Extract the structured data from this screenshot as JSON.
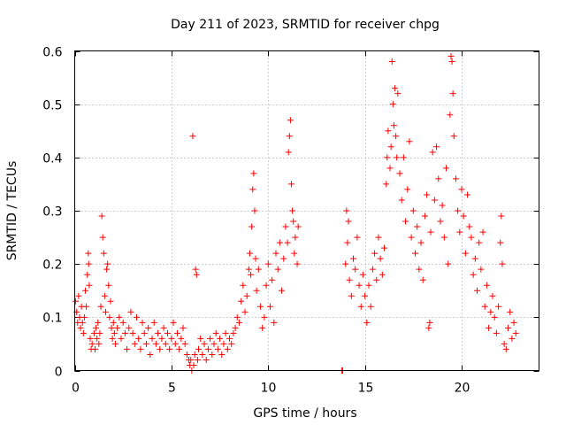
{
  "chart_data": {
    "type": "scatter",
    "title": "Day 211 of 2023, SRMTID for receiver chpg",
    "xlabel": "GPS time / hours",
    "ylabel": "SRMTID / TECUs",
    "xlim": [
      0,
      24
    ],
    "ylim": [
      0,
      0.6
    ],
    "xticks": [
      0,
      5,
      10,
      15,
      20
    ],
    "xtick_labels": [
      "0",
      "5",
      "10",
      "15",
      "20"
    ],
    "yticks": [
      0,
      0.1,
      0.2,
      0.3,
      0.4,
      0.5,
      0.6
    ],
    "ytick_labels": [
      "0",
      "0.1",
      "0.2",
      "0.3",
      "0.4",
      "0.5",
      "0.6"
    ],
    "grid": true,
    "marker": "plus",
    "color": "#ff0000",
    "series": [
      {
        "name": "SRMTID",
        "points": [
          [
            0.05,
            0.13
          ],
          [
            0.1,
            0.11
          ],
          [
            0.15,
            0.09
          ],
          [
            0.2,
            0.14
          ],
          [
            0.25,
            0.1
          ],
          [
            0.3,
            0.08
          ],
          [
            0.35,
            0.12
          ],
          [
            0.4,
            0.09
          ],
          [
            0.45,
            0.07
          ],
          [
            0.5,
            0.1
          ],
          [
            0.55,
            0.15
          ],
          [
            0.6,
            0.12
          ],
          [
            0.65,
            0.18
          ],
          [
            0.7,
            0.22
          ],
          [
            0.72,
            0.2
          ],
          [
            0.75,
            0.16
          ],
          [
            0.8,
            0.06
          ],
          [
            0.85,
            0.04
          ],
          [
            0.9,
            0.05
          ],
          [
            1.0,
            0.07
          ],
          [
            1.05,
            0.04
          ],
          [
            1.1,
            0.08
          ],
          [
            1.15,
            0.06
          ],
          [
            1.2,
            0.09
          ],
          [
            1.25,
            0.05
          ],
          [
            1.3,
            0.07
          ],
          [
            1.35,
            0.12
          ],
          [
            1.4,
            0.29
          ],
          [
            1.45,
            0.25
          ],
          [
            1.5,
            0.22
          ],
          [
            1.55,
            0.14
          ],
          [
            1.6,
            0.11
          ],
          [
            1.65,
            0.19
          ],
          [
            1.7,
            0.2
          ],
          [
            1.75,
            0.16
          ],
          [
            1.8,
            0.1
          ],
          [
            1.85,
            0.13
          ],
          [
            1.9,
            0.08
          ],
          [
            1.95,
            0.06
          ],
          [
            2.0,
            0.09
          ],
          [
            2.05,
            0.07
          ],
          [
            2.1,
            0.05
          ],
          [
            2.2,
            0.08
          ],
          [
            2.3,
            0.1
          ],
          [
            2.4,
            0.06
          ],
          [
            2.5,
            0.09
          ],
          [
            2.6,
            0.07
          ],
          [
            2.7,
            0.04
          ],
          [
            2.8,
            0.08
          ],
          [
            2.9,
            0.11
          ],
          [
            3.0,
            0.07
          ],
          [
            3.1,
            0.05
          ],
          [
            3.2,
            0.1
          ],
          [
            3.3,
            0.06
          ],
          [
            3.4,
            0.04
          ],
          [
            3.5,
            0.09
          ],
          [
            3.6,
            0.07
          ],
          [
            3.7,
            0.05
          ],
          [
            3.8,
            0.08
          ],
          [
            3.9,
            0.03
          ],
          [
            4.0,
            0.06
          ],
          [
            4.1,
            0.09
          ],
          [
            4.2,
            0.05
          ],
          [
            4.3,
            0.07
          ],
          [
            4.4,
            0.04
          ],
          [
            4.5,
            0.06
          ],
          [
            4.6,
            0.08
          ],
          [
            4.7,
            0.05
          ],
          [
            4.8,
            0.07
          ],
          [
            4.9,
            0.04
          ],
          [
            5.0,
            0.06
          ],
          [
            5.1,
            0.09
          ],
          [
            5.2,
            0.05
          ],
          [
            5.3,
            0.07
          ],
          [
            5.4,
            0.04
          ],
          [
            5.5,
            0.06
          ],
          [
            5.6,
            0.08
          ],
          [
            5.7,
            0.05
          ],
          [
            5.8,
            0.03
          ],
          [
            5.9,
            0.02
          ],
          [
            5.95,
            0.01
          ],
          [
            6.0,
            0.02
          ],
          [
            6.05,
            0.0
          ],
          [
            6.1,
            0.44
          ],
          [
            6.15,
            0.01
          ],
          [
            6.2,
            0.03
          ],
          [
            6.25,
            0.19
          ],
          [
            6.3,
            0.18
          ],
          [
            6.35,
            0.02
          ],
          [
            6.4,
            0.04
          ],
          [
            6.5,
            0.06
          ],
          [
            6.6,
            0.03
          ],
          [
            6.7,
            0.05
          ],
          [
            6.8,
            0.02
          ],
          [
            6.9,
            0.04
          ],
          [
            7.0,
            0.06
          ],
          [
            7.1,
            0.03
          ],
          [
            7.2,
            0.05
          ],
          [
            7.3,
            0.07
          ],
          [
            7.4,
            0.04
          ],
          [
            7.5,
            0.06
          ],
          [
            7.6,
            0.03
          ],
          [
            7.7,
            0.05
          ],
          [
            7.8,
            0.07
          ],
          [
            7.9,
            0.04
          ],
          [
            8.0,
            0.06
          ],
          [
            8.1,
            0.05
          ],
          [
            8.2,
            0.07
          ],
          [
            8.3,
            0.08
          ],
          [
            8.4,
            0.1
          ],
          [
            8.5,
            0.09
          ],
          [
            8.6,
            0.13
          ],
          [
            8.7,
            0.16
          ],
          [
            8.8,
            0.11
          ],
          [
            8.9,
            0.14
          ],
          [
            9.0,
            0.19
          ],
          [
            9.05,
            0.22
          ],
          [
            9.1,
            0.18
          ],
          [
            9.15,
            0.27
          ],
          [
            9.2,
            0.34
          ],
          [
            9.25,
            0.37
          ],
          [
            9.3,
            0.3
          ],
          [
            9.35,
            0.21
          ],
          [
            9.4,
            0.15
          ],
          [
            9.5,
            0.19
          ],
          [
            9.6,
            0.12
          ],
          [
            9.7,
            0.08
          ],
          [
            9.8,
            0.1
          ],
          [
            9.9,
            0.16
          ],
          [
            10.0,
            0.2
          ],
          [
            10.1,
            0.12
          ],
          [
            10.2,
            0.17
          ],
          [
            10.3,
            0.09
          ],
          [
            10.4,
            0.22
          ],
          [
            10.5,
            0.19
          ],
          [
            10.6,
            0.24
          ],
          [
            10.7,
            0.15
          ],
          [
            10.8,
            0.21
          ],
          [
            10.9,
            0.27
          ],
          [
            11.0,
            0.24
          ],
          [
            11.05,
            0.41
          ],
          [
            11.1,
            0.44
          ],
          [
            11.15,
            0.47
          ],
          [
            11.2,
            0.35
          ],
          [
            11.25,
            0.3
          ],
          [
            11.3,
            0.28
          ],
          [
            11.35,
            0.22
          ],
          [
            11.4,
            0.25
          ],
          [
            11.5,
            0.2
          ],
          [
            11.55,
            0.27
          ],
          [
            13.8,
            0.0
          ],
          [
            13.85,
            0.0
          ],
          [
            14.0,
            0.2
          ],
          [
            14.05,
            0.3
          ],
          [
            14.1,
            0.24
          ],
          [
            14.15,
            0.28
          ],
          [
            14.2,
            0.17
          ],
          [
            14.3,
            0.14
          ],
          [
            14.4,
            0.21
          ],
          [
            14.5,
            0.19
          ],
          [
            14.6,
            0.25
          ],
          [
            14.7,
            0.16
          ],
          [
            14.8,
            0.12
          ],
          [
            14.9,
            0.18
          ],
          [
            15.0,
            0.14
          ],
          [
            15.1,
            0.09
          ],
          [
            15.2,
            0.16
          ],
          [
            15.3,
            0.12
          ],
          [
            15.4,
            0.19
          ],
          [
            15.5,
            0.22
          ],
          [
            15.6,
            0.17
          ],
          [
            15.7,
            0.25
          ],
          [
            15.8,
            0.21
          ],
          [
            15.9,
            0.18
          ],
          [
            16.0,
            0.23
          ],
          [
            16.1,
            0.35
          ],
          [
            16.15,
            0.4
          ],
          [
            16.2,
            0.45
          ],
          [
            16.3,
            0.38
          ],
          [
            16.35,
            0.42
          ],
          [
            16.4,
            0.58
          ],
          [
            16.45,
            0.5
          ],
          [
            16.5,
            0.46
          ],
          [
            16.55,
            0.53
          ],
          [
            16.6,
            0.44
          ],
          [
            16.65,
            0.4
          ],
          [
            16.7,
            0.52
          ],
          [
            16.8,
            0.37
          ],
          [
            16.9,
            0.32
          ],
          [
            17.0,
            0.4
          ],
          [
            17.1,
            0.28
          ],
          [
            17.2,
            0.34
          ],
          [
            17.3,
            0.43
          ],
          [
            17.4,
            0.25
          ],
          [
            17.5,
            0.3
          ],
          [
            17.6,
            0.22
          ],
          [
            17.7,
            0.27
          ],
          [
            17.8,
            0.19
          ],
          [
            17.9,
            0.24
          ],
          [
            18.0,
            0.17
          ],
          [
            18.1,
            0.29
          ],
          [
            18.2,
            0.33
          ],
          [
            18.3,
            0.08
          ],
          [
            18.35,
            0.09
          ],
          [
            18.4,
            0.26
          ],
          [
            18.5,
            0.41
          ],
          [
            18.6,
            0.32
          ],
          [
            18.7,
            0.42
          ],
          [
            18.8,
            0.36
          ],
          [
            18.9,
            0.28
          ],
          [
            19.0,
            0.31
          ],
          [
            19.1,
            0.25
          ],
          [
            19.2,
            0.38
          ],
          [
            19.3,
            0.2
          ],
          [
            19.4,
            0.48
          ],
          [
            19.45,
            0.59
          ],
          [
            19.5,
            0.58
          ],
          [
            19.55,
            0.52
          ],
          [
            19.6,
            0.44
          ],
          [
            19.7,
            0.36
          ],
          [
            19.8,
            0.3
          ],
          [
            19.9,
            0.26
          ],
          [
            20.0,
            0.34
          ],
          [
            20.1,
            0.29
          ],
          [
            20.2,
            0.22
          ],
          [
            20.3,
            0.33
          ],
          [
            20.4,
            0.27
          ],
          [
            20.5,
            0.25
          ],
          [
            20.6,
            0.18
          ],
          [
            20.7,
            0.21
          ],
          [
            20.8,
            0.15
          ],
          [
            20.9,
            0.24
          ],
          [
            21.0,
            0.19
          ],
          [
            21.1,
            0.26
          ],
          [
            21.2,
            0.12
          ],
          [
            21.3,
            0.16
          ],
          [
            21.4,
            0.08
          ],
          [
            21.5,
            0.11
          ],
          [
            21.6,
            0.14
          ],
          [
            21.7,
            0.1
          ],
          [
            21.8,
            0.07
          ],
          [
            21.9,
            0.12
          ],
          [
            22.0,
            0.24
          ],
          [
            22.05,
            0.29
          ],
          [
            22.1,
            0.2
          ],
          [
            22.2,
            0.05
          ],
          [
            22.3,
            0.04
          ],
          [
            22.4,
            0.08
          ],
          [
            22.5,
            0.11
          ],
          [
            22.6,
            0.06
          ],
          [
            22.7,
            0.09
          ],
          [
            22.8,
            0.07
          ]
        ]
      }
    ]
  }
}
